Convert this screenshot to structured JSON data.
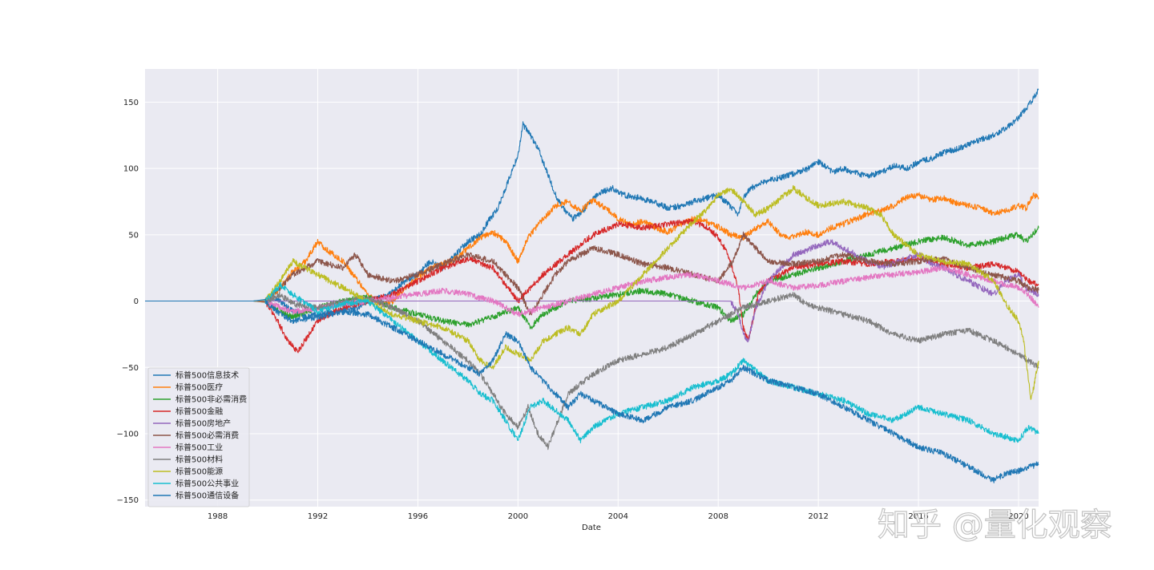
{
  "watermark": "知乎 @量化观察",
  "chart_data": {
    "type": "line",
    "title": "",
    "xlabel": "Date",
    "ylabel": "",
    "xlim": [
      1985.1,
      2020.8
    ],
    "ylim": [
      -155,
      175
    ],
    "xticks": [
      1988,
      1992,
      1996,
      2000,
      2004,
      2008,
      2012,
      2016,
      2020
    ],
    "xtick_labels": [
      "1988",
      "1992",
      "1996",
      "2000",
      "2004",
      "2008",
      "2012",
      "2016",
      "2020"
    ],
    "yticks": [
      -150,
      -100,
      -50,
      0,
      50,
      100,
      150
    ],
    "ytick_labels": [
      "−150",
      "−100",
      "−50",
      "0",
      "50",
      "100",
      "150"
    ],
    "grid": true,
    "legend_position": "lower-left",
    "series": [
      {
        "name": "标普500信息技术",
        "color": "#1f77b4",
        "x": [
          1985.1,
          1989.9,
          1990.3,
          1990.8,
          1991.5,
          1992.0,
          1992.8,
          1993.5,
          1994.0,
          1994.8,
          1995.5,
          1996.0,
          1996.5,
          1997.0,
          1997.5,
          1998.0,
          1998.5,
          1998.8,
          1999.2,
          1999.6,
          2000.0,
          2000.2,
          2000.5,
          2000.8,
          2001.2,
          2001.5,
          2001.8,
          2002.2,
          2002.6,
          2002.9,
          2003.3,
          2003.8,
          2004.2,
          2004.8,
          2005.5,
          2006.0,
          2006.6,
          2007.0,
          2007.6,
          2008.0,
          2008.4,
          2008.8,
          2009.0,
          2009.3,
          2009.8,
          2010.5,
          2011.0,
          2011.6,
          2012.0,
          2012.6,
          2013.0,
          2013.6,
          2014.0,
          2014.6,
          2015.0,
          2015.6,
          2016.0,
          2016.6,
          2017.0,
          2017.6,
          2018.0,
          2018.5,
          2019.0,
          2019.5,
          2020.0,
          2020.5,
          2020.8
        ],
        "values": [
          0,
          0,
          3,
          -5,
          -12,
          -10,
          -8,
          -6,
          0,
          4,
          15,
          20,
          30,
          25,
          35,
          45,
          50,
          60,
          70,
          90,
          110,
          133,
          125,
          115,
          95,
          80,
          70,
          62,
          68,
          75,
          82,
          85,
          80,
          78,
          74,
          70,
          72,
          75,
          78,
          80,
          73,
          65,
          78,
          85,
          90,
          93,
          96,
          100,
          105,
          97,
          100,
          96,
          94,
          98,
          102,
          100,
          105,
          108,
          112,
          115,
          118,
          122,
          125,
          130,
          138,
          150,
          160
        ]
      },
      {
        "name": "标普500医疗",
        "color": "#ff7f0e",
        "x": [
          1985.1,
          1989.9,
          1990.5,
          1991.0,
          1991.5,
          1992.0,
          1992.4,
          1993.0,
          1993.5,
          1994.0,
          1994.6,
          1995.0,
          1995.5,
          1996.0,
          1996.5,
          1997.0,
          1997.5,
          1998.0,
          1998.5,
          1999.0,
          1999.5,
          2000.0,
          2000.4,
          2000.9,
          2001.5,
          2002.0,
          2002.5,
          2003.0,
          2003.5,
          2004.0,
          2004.5,
          2005.0,
          2005.5,
          2006.0,
          2006.5,
          2007.0,
          2007.5,
          2008.0,
          2008.5,
          2009.0,
          2009.5,
          2010.0,
          2010.5,
          2011.0,
          2011.5,
          2012.0,
          2012.5,
          2013.0,
          2013.5,
          2014.0,
          2014.5,
          2015.0,
          2015.5,
          2016.0,
          2016.5,
          2017.0,
          2017.5,
          2018.0,
          2018.5,
          2019.0,
          2019.5,
          2020.0,
          2020.3,
          2020.6,
          2020.8
        ],
        "values": [
          0,
          0,
          10,
          22,
          30,
          45,
          38,
          30,
          18,
          5,
          -3,
          0,
          10,
          18,
          25,
          28,
          32,
          40,
          48,
          52,
          45,
          30,
          48,
          60,
          72,
          75,
          68,
          76,
          70,
          62,
          58,
          60,
          55,
          52,
          58,
          62,
          60,
          56,
          50,
          48,
          55,
          60,
          50,
          48,
          52,
          50,
          55,
          58,
          62,
          66,
          68,
          72,
          78,
          80,
          76,
          78,
          74,
          72,
          70,
          66,
          68,
          72,
          70,
          80,
          78
        ]
      },
      {
        "name": "标普500非必需消费",
        "color": "#2ca02c",
        "x": [
          1985.1,
          1989.9,
          1990.5,
          1991.0,
          1992.0,
          1993.0,
          1994.0,
          1995.0,
          1996.0,
          1997.0,
          1998.0,
          1999.0,
          2000.0,
          2000.5,
          2001.0,
          2002.0,
          2003.0,
          2004.0,
          2005.0,
          2006.0,
          2007.0,
          2008.0,
          2008.5,
          2009.0,
          2009.5,
          2010.0,
          2011.0,
          2012.0,
          2013.0,
          2014.0,
          2015.0,
          2016.0,
          2017.0,
          2018.0,
          2019.0,
          2019.5,
          2020.0,
          2020.3,
          2020.8
        ],
        "values": [
          0,
          0,
          -8,
          -12,
          -5,
          0,
          3,
          -5,
          -10,
          -15,
          -18,
          -12,
          -5,
          -20,
          -10,
          0,
          2,
          5,
          8,
          5,
          0,
          -5,
          -15,
          -10,
          5,
          15,
          20,
          25,
          30,
          35,
          40,
          45,
          48,
          42,
          45,
          48,
          50,
          45,
          55
        ]
      },
      {
        "name": "标普500金融",
        "color": "#d62728",
        "x": [
          1985.1,
          1989.9,
          1990.4,
          1990.8,
          1991.2,
          1992.0,
          1993.0,
          1994.0,
          1995.0,
          1996.0,
          1997.0,
          1998.0,
          1999.0,
          1999.6,
          2000.0,
          2000.5,
          2001.0,
          2002.0,
          2003.0,
          2004.0,
          2005.0,
          2006.0,
          2007.0,
          2007.6,
          2008.0,
          2008.4,
          2008.8,
          2009.0,
          2009.2,
          2009.6,
          2010.0,
          2011.0,
          2012.0,
          2013.0,
          2014.0,
          2015.0,
          2016.0,
          2017.0,
          2018.0,
          2019.0,
          2020.0,
          2020.4,
          2020.8
        ],
        "values": [
          0,
          0,
          -15,
          -30,
          -38,
          -15,
          -5,
          0,
          5,
          15,
          25,
          32,
          25,
          10,
          0,
          10,
          20,
          35,
          50,
          58,
          55,
          58,
          60,
          55,
          48,
          35,
          10,
          -20,
          -30,
          5,
          15,
          25,
          28,
          30,
          28,
          30,
          32,
          28,
          25,
          28,
          22,
          15,
          12
        ]
      },
      {
        "name": "标普500房地产",
        "color": "#9467bd",
        "x": [
          1985.1,
          2008.5,
          2008.8,
          2009.0,
          2009.2,
          2009.5,
          2010.0,
          2010.5,
          2011.0,
          2011.5,
          2012.0,
          2012.5,
          2013.0,
          2013.5,
          2014.0,
          2014.5,
          2015.0,
          2015.5,
          2016.0,
          2016.5,
          2017.0,
          2017.5,
          2018.0,
          2018.5,
          2019.0,
          2019.5,
          2020.0,
          2020.3,
          2020.8
        ],
        "values": [
          0,
          0,
          -10,
          -25,
          -30,
          -5,
          15,
          25,
          35,
          38,
          42,
          45,
          40,
          35,
          30,
          25,
          28,
          32,
          35,
          28,
          25,
          20,
          15,
          10,
          5,
          15,
          20,
          10,
          5
        ]
      },
      {
        "name": "标普500必需消费",
        "color": "#8c564b",
        "x": [
          1985.1,
          1989.9,
          1990.5,
          1991.0,
          1992.0,
          1993.0,
          1993.5,
          1994.0,
          1995.0,
          1996.0,
          1997.0,
          1998.0,
          1999.0,
          2000.0,
          2000.5,
          2001.0,
          2001.5,
          2002.0,
          2002.5,
          2003.0,
          2004.0,
          2005.0,
          2006.0,
          2007.0,
          2008.0,
          2008.6,
          2009.0,
          2009.5,
          2010.0,
          2011.0,
          2012.0,
          2013.0,
          2014.0,
          2015.0,
          2016.0,
          2017.0,
          2018.0,
          2019.0,
          2020.0,
          2020.4,
          2020.8
        ],
        "values": [
          0,
          0,
          10,
          20,
          30,
          25,
          35,
          20,
          15,
          20,
          28,
          35,
          30,
          10,
          -10,
          5,
          20,
          30,
          35,
          40,
          35,
          28,
          25,
          20,
          15,
          30,
          50,
          40,
          30,
          28,
          30,
          35,
          30,
          28,
          30,
          32,
          25,
          20,
          15,
          10,
          8
        ]
      },
      {
        "name": "标普500工业",
        "color": "#e377c2",
        "x": [
          1985.1,
          1989.9,
          1990.5,
          1991.0,
          1992.0,
          1993.0,
          1994.0,
          1995.0,
          1996.0,
          1997.0,
          1998.0,
          1999.0,
          2000.0,
          2001.0,
          2002.0,
          2003.0,
          2004.0,
          2005.0,
          2006.0,
          2007.0,
          2008.0,
          2009.0,
          2010.0,
          2011.0,
          2012.0,
          2013.0,
          2014.0,
          2015.0,
          2016.0,
          2017.0,
          2018.0,
          2019.0,
          2020.0,
          2020.4,
          2020.8
        ],
        "values": [
          0,
          0,
          -5,
          -8,
          -5,
          -2,
          0,
          3,
          5,
          8,
          5,
          0,
          -10,
          -5,
          0,
          5,
          10,
          15,
          18,
          20,
          15,
          10,
          15,
          10,
          12,
          15,
          18,
          20,
          22,
          25,
          20,
          15,
          10,
          5,
          -5
        ]
      },
      {
        "name": "标普500材料",
        "color": "#7f7f7f",
        "x": [
          1985.1,
          1989.9,
          1990.5,
          1991.0,
          1992.0,
          1993.0,
          1994.0,
          1995.0,
          1996.0,
          1997.0,
          1998.0,
          1998.5,
          1999.0,
          1999.5,
          2000.0,
          2000.4,
          2000.8,
          2001.2,
          2001.6,
          2002.0,
          2003.0,
          2004.0,
          2005.0,
          2006.0,
          2007.0,
          2008.0,
          2008.5,
          2009.0,
          2010.0,
          2011.0,
          2011.5,
          2012.0,
          2013.0,
          2014.0,
          2015.0,
          2016.0,
          2017.0,
          2018.0,
          2019.0,
          2020.0,
          2020.4,
          2020.8
        ],
        "values": [
          0,
          0,
          5,
          -2,
          -5,
          0,
          2,
          -5,
          -15,
          -30,
          -45,
          -55,
          -70,
          -85,
          -95,
          -80,
          -100,
          -110,
          -90,
          -70,
          -55,
          -45,
          -40,
          -35,
          -25,
          -15,
          -10,
          -5,
          0,
          5,
          -2,
          -5,
          -10,
          -15,
          -25,
          -30,
          -25,
          -22,
          -30,
          -40,
          -45,
          -50
        ]
      },
      {
        "name": "标普500能源",
        "color": "#bcbd22",
        "x": [
          1985.1,
          1989.9,
          1990.5,
          1991.0,
          1992.0,
          1993.0,
          1994.0,
          1995.0,
          1996.0,
          1997.0,
          1998.0,
          1998.5,
          1999.0,
          1999.5,
          2000.0,
          2000.5,
          2001.0,
          2002.0,
          2002.5,
          2003.0,
          2004.0,
          2005.0,
          2006.0,
          2007.0,
          2007.6,
          2008.0,
          2008.5,
          2009.0,
          2009.5,
          2010.0,
          2011.0,
          2011.5,
          2012.0,
          2013.0,
          2014.0,
          2014.5,
          2015.0,
          2016.0,
          2017.0,
          2018.0,
          2019.0,
          2019.6,
          2020.0,
          2020.2,
          2020.5,
          2020.8
        ],
        "values": [
          0,
          0,
          15,
          30,
          20,
          10,
          0,
          -10,
          -15,
          -20,
          -30,
          -45,
          -50,
          -35,
          -40,
          -45,
          -30,
          -20,
          -25,
          -10,
          0,
          20,
          40,
          60,
          70,
          80,
          85,
          75,
          65,
          70,
          85,
          78,
          72,
          75,
          70,
          65,
          50,
          35,
          30,
          28,
          15,
          -5,
          -15,
          -30,
          -75,
          -45
        ]
      },
      {
        "name": "标普500公共事业",
        "color": "#17becf",
        "x": [
          1985.1,
          1989.9,
          1990.5,
          1991.0,
          1992.0,
          1993.0,
          1994.0,
          1995.0,
          1996.0,
          1997.0,
          1998.0,
          1998.5,
          1999.0,
          1999.5,
          2000.0,
          2000.5,
          2001.0,
          2002.0,
          2002.5,
          2003.0,
          2004.0,
          2005.0,
          2006.0,
          2007.0,
          2008.0,
          2008.5,
          2009.0,
          2010.0,
          2011.0,
          2012.0,
          2013.0,
          2014.0,
          2015.0,
          2016.0,
          2017.0,
          2018.0,
          2019.0,
          2020.0,
          2020.4,
          2020.8
        ],
        "values": [
          0,
          0,
          12,
          5,
          -8,
          -2,
          0,
          -15,
          -30,
          -45,
          -60,
          -70,
          -75,
          -90,
          -105,
          -80,
          -75,
          -90,
          -105,
          -95,
          -85,
          -80,
          -75,
          -65,
          -60,
          -55,
          -45,
          -60,
          -65,
          -70,
          -75,
          -85,
          -90,
          -80,
          -85,
          -90,
          -100,
          -105,
          -95,
          -100
        ]
      },
      {
        "name": "标普500通信设备",
        "color": "#1f77b4",
        "x": [
          1985.1,
          1989.9,
          1990.5,
          1991.0,
          1992.0,
          1993.0,
          1994.0,
          1995.0,
          1996.0,
          1997.0,
          1998.0,
          1998.5,
          1999.0,
          1999.5,
          2000.0,
          2000.5,
          2001.0,
          2002.0,
          2002.5,
          2003.0,
          2004.0,
          2005.0,
          2006.0,
          2007.0,
          2008.0,
          2008.5,
          2009.0,
          2010.0,
          2011.0,
          2012.0,
          2013.0,
          2014.0,
          2015.0,
          2016.0,
          2017.0,
          2018.0,
          2019.0,
          2019.5,
          2020.0,
          2020.4,
          2020.8
        ],
        "values": [
          0,
          0,
          -10,
          -15,
          -12,
          -8,
          -10,
          -20,
          -30,
          -40,
          -50,
          -55,
          -45,
          -25,
          -30,
          -50,
          -60,
          -80,
          -70,
          -75,
          -85,
          -90,
          -80,
          -75,
          -65,
          -60,
          -50,
          -60,
          -65,
          -70,
          -80,
          -90,
          -100,
          -110,
          -115,
          -125,
          -135,
          -130,
          -128,
          -125,
          -123
        ]
      }
    ]
  }
}
